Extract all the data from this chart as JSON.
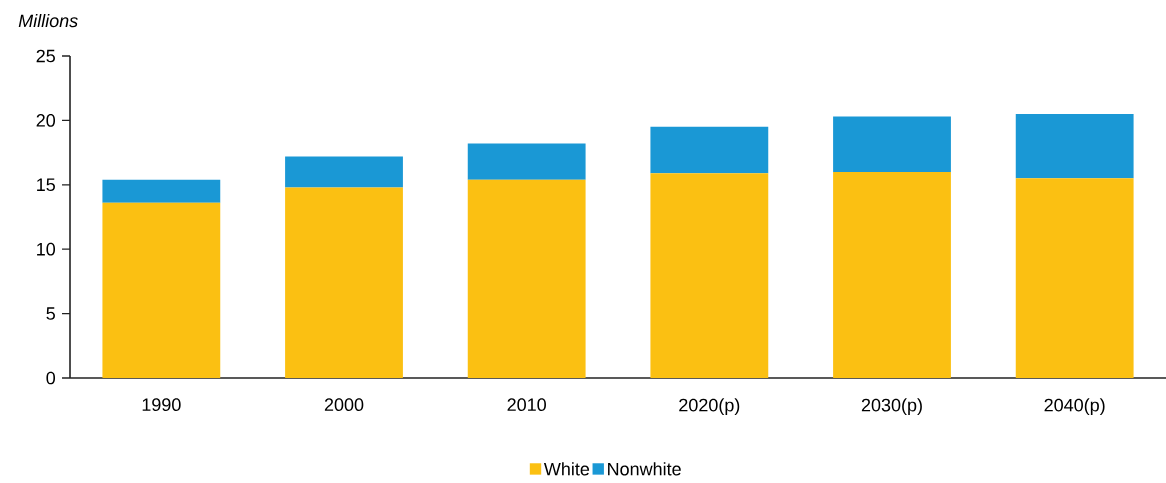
{
  "chart_data": {
    "type": "bar",
    "stacked": true,
    "ylabel": "Millions",
    "categories": [
      "1990",
      "2000",
      "2010",
      "2020(p)",
      "2030(p)",
      "2040(p)"
    ],
    "series": [
      {
        "name": "White",
        "color": "#fbc012",
        "values": [
          13.6,
          14.8,
          15.4,
          15.9,
          16.0,
          15.5
        ]
      },
      {
        "name": "Nonwhite",
        "color": "#1a98d5",
        "values": [
          1.8,
          2.4,
          2.8,
          3.6,
          4.3,
          5.0
        ]
      }
    ],
    "ylim": [
      0,
      25
    ],
    "yticks": [
      0,
      5,
      10,
      15,
      20,
      25
    ],
    "grid": false,
    "legend": "bottom"
  }
}
